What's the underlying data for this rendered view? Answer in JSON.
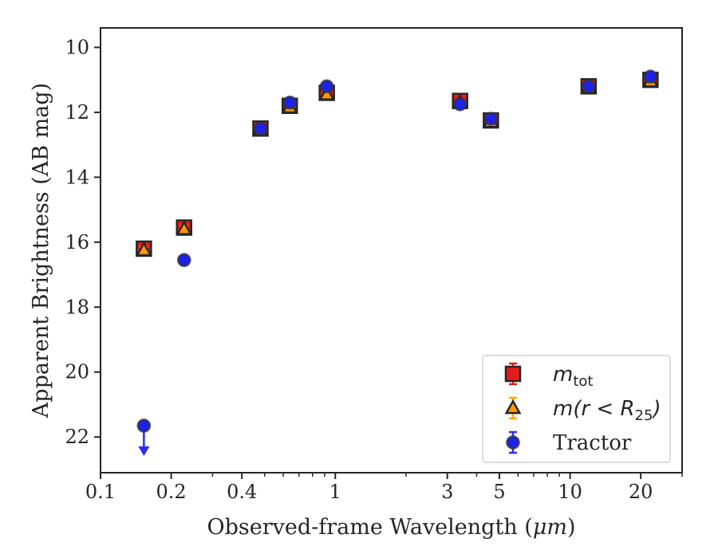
{
  "chart_data": {
    "type": "scatter",
    "xlabel_prefix": "Observed-frame Wavelength (",
    "xlabel_unit": "μm",
    "xlabel_suffix": ")",
    "ylabel": "Apparent Brightness (AB mag)",
    "xscale": "log",
    "yinverted": true,
    "xlim": [
      0.1,
      30
    ],
    "ylim": [
      23.1,
      9.4
    ],
    "x_ticks": [
      {
        "value": 0.1,
        "label": "0.1"
      },
      {
        "value": 0.2,
        "label": "0.2"
      },
      {
        "value": 0.4,
        "label": "0.4"
      },
      {
        "value": 1,
        "label": "1"
      },
      {
        "value": 3,
        "label": "3"
      },
      {
        "value": 5,
        "label": "5"
      },
      {
        "value": 10,
        "label": "10"
      },
      {
        "value": 20,
        "label": "20"
      }
    ],
    "y_ticks": [
      {
        "value": 10,
        "label": "10"
      },
      {
        "value": 12,
        "label": "12"
      },
      {
        "value": 14,
        "label": "14"
      },
      {
        "value": 16,
        "label": "16"
      },
      {
        "value": 18,
        "label": "18"
      },
      {
        "value": 20,
        "label": "20"
      },
      {
        "value": 22,
        "label": "22"
      }
    ],
    "grid": false,
    "legend_position": "bottom-right",
    "series": [
      {
        "name": "m_tot",
        "legend_base": "m",
        "legend_sub": "tot",
        "marker": "square",
        "fill": "#e41a1c",
        "errcolor": "#e41a1c",
        "points": [
          {
            "x": 0.153,
            "y": 16.2,
            "err": 0.1
          },
          {
            "x": 0.227,
            "y": 15.55,
            "err": 0.1
          },
          {
            "x": 0.48,
            "y": 12.5,
            "err": 0.05
          },
          {
            "x": 0.64,
            "y": 11.8,
            "err": 0.05
          },
          {
            "x": 0.92,
            "y": 11.4,
            "err": 0.05
          },
          {
            "x": 3.4,
            "y": 11.65,
            "err": 0.1
          },
          {
            "x": 4.6,
            "y": 12.25,
            "err": 0.1
          },
          {
            "x": 12.0,
            "y": 11.2,
            "err": 0.05
          },
          {
            "x": 22.0,
            "y": 11.0,
            "err": 0.05
          }
        ]
      },
      {
        "name": "m(r < R_25)",
        "legend_base": "m(r < R",
        "legend_sub": "25",
        "legend_close": ")",
        "marker": "triangle",
        "fill": "#ff9900",
        "errcolor": "#ffaa00",
        "points": [
          {
            "x": 0.153,
            "y": 16.25,
            "err": 0.1
          },
          {
            "x": 0.227,
            "y": 15.6,
            "err": 0.1
          },
          {
            "x": 0.48,
            "y": 12.55,
            "err": 0.05
          },
          {
            "x": 0.64,
            "y": 11.85,
            "err": 0.05
          },
          {
            "x": 0.92,
            "y": 11.45,
            "err": 0.05
          },
          {
            "x": 3.4,
            "y": 11.7,
            "err": 0.1
          },
          {
            "x": 4.6,
            "y": 12.3,
            "err": 0.1
          },
          {
            "x": 12.0,
            "y": 11.25,
            "err": 0.05
          },
          {
            "x": 22.0,
            "y": 11.05,
            "err": 0.05
          }
        ]
      },
      {
        "name": "Tractor",
        "marker": "circle",
        "fill": "#1e22e8",
        "errcolor": "#2a2aff",
        "points": [
          {
            "x": 0.153,
            "y": 21.65,
            "err": 0,
            "upper_limit": true
          },
          {
            "x": 0.227,
            "y": 16.55,
            "err": 0.05
          },
          {
            "x": 0.48,
            "y": 12.5,
            "err": 0.05
          },
          {
            "x": 0.64,
            "y": 11.7,
            "err": 0.05
          },
          {
            "x": 0.92,
            "y": 11.2,
            "err": 0.05
          },
          {
            "x": 3.4,
            "y": 11.75,
            "err": 0.1
          },
          {
            "x": 4.6,
            "y": 12.2,
            "err": 0.1
          },
          {
            "x": 12.0,
            "y": 11.2,
            "err": 0.05
          },
          {
            "x": 22.0,
            "y": 10.9,
            "err": 0.05
          }
        ]
      }
    ]
  }
}
